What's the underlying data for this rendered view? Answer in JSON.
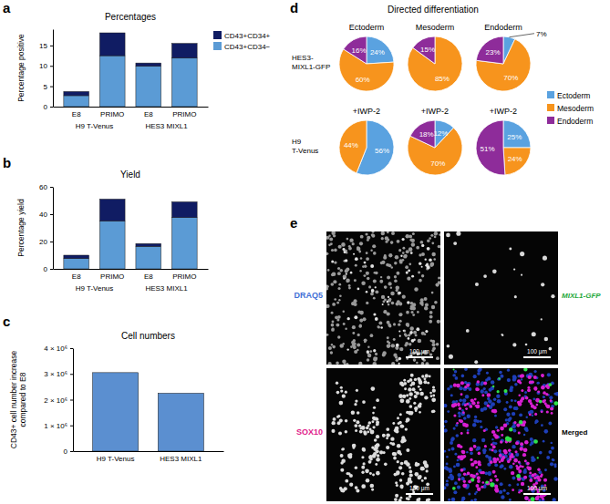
{
  "chart_data": [
    {
      "type": "bar",
      "title": "Percentages",
      "y_label": "Percentage positive",
      "categories": [
        "E8",
        "PRIMO",
        "E8",
        "PRIMO"
      ],
      "group_labels": [
        "H9 T-Venus",
        "HES3 MIXL1"
      ],
      "stacked": true,
      "legend": "upper right",
      "ylim": [
        0,
        19
      ],
      "yticks": [
        0,
        5,
        10,
        15
      ],
      "series": [
        {
          "name": "CD43+CD34−",
          "color": "#5b9bd5",
          "values": [
            2.7,
            12.5,
            9.9,
            11.9
          ]
        },
        {
          "name": "CD43+CD34+",
          "color": "#101c63",
          "values": [
            1.0,
            5.6,
            0.8,
            3.6
          ]
        }
      ]
    },
    {
      "type": "bar",
      "title": "Yield",
      "y_label": "Percentage yield",
      "categories": [
        "E8",
        "PRIMO",
        "E8",
        "PRIMO"
      ],
      "group_labels": [
        "H9 T-Venus",
        "HES3 MIXL1"
      ],
      "stacked": true,
      "ylim": [
        0,
        60
      ],
      "yticks": [
        0,
        20,
        40,
        60
      ],
      "series": [
        {
          "color": "#5b9bd5",
          "values": [
            7.5,
            35,
            16.5,
            37.5
          ]
        },
        {
          "color": "#101c63",
          "values": [
            2.5,
            16,
            2,
            11.5
          ]
        }
      ]
    },
    {
      "type": "bar",
      "title": "Cell numbers",
      "y_label": [
        "CD43+ cell number increase",
        "compared to E8"
      ],
      "categories": [
        "H9 T-Venus",
        "HES3 MIXL1"
      ],
      "values": [
        3050000,
        2250000
      ],
      "color": "#5b8fd0",
      "ylim": [
        0,
        4000000
      ],
      "yticks": [
        0,
        {
          "value": 1000000,
          "label": "1 × 10⁶"
        },
        {
          "value": 2000000,
          "label": "2 × 10⁶"
        },
        {
          "value": 3000000,
          "label": "3 × 10⁶"
        },
        {
          "value": 4000000,
          "label": "4 × 10⁶"
        }
      ]
    },
    {
      "type": "pie",
      "title": "Ectoderm",
      "categories": [
        "Ectoderm",
        "Mesoderm",
        "Endoderm"
      ],
      "values": [
        24,
        60,
        16
      ],
      "value_labels": [
        "24%",
        "60%",
        "16%"
      ],
      "colors": [
        "#5aa2e0",
        "#f7941d",
        "#8e2c9a"
      ],
      "data_labels": true,
      "legend": "right"
    },
    {
      "type": "pie",
      "title": "Mesoderm",
      "categories": [
        "Mesoderm",
        "Endoderm"
      ],
      "values": [
        85,
        15
      ],
      "value_labels": [
        "85%",
        "15%"
      ],
      "colors": [
        "#f7941d",
        "#8e2c9a"
      ],
      "data_labels": true
    },
    {
      "type": "pie",
      "title": "Endoderm",
      "categories": [
        "Ectoderm",
        "Mesoderm",
        "Endoderm"
      ],
      "values": [
        7,
        70,
        23
      ],
      "value_labels": [
        "7%",
        "70%",
        "23%"
      ],
      "colors": [
        "#5aa2e0",
        "#f7941d",
        "#8e2c9a"
      ],
      "data_labels": true
    },
    {
      "type": "pie",
      "title": "+IWP-2",
      "categories": [
        "Ectoderm",
        "Mesoderm"
      ],
      "values": [
        56,
        44
      ],
      "value_labels": [
        "56%",
        "44%"
      ],
      "colors": [
        "#5aa2e0",
        "#f7941d"
      ],
      "data_labels": true
    },
    {
      "type": "pie",
      "title": "+IWP-2",
      "categories": [
        "Ectoderm",
        "Mesoderm",
        "Endoderm"
      ],
      "values": [
        12,
        70,
        18
      ],
      "value_labels": [
        "12%",
        "70%",
        "18%"
      ],
      "colors": [
        "#5aa2e0",
        "#f7941d",
        "#8e2c9a"
      ],
      "data_labels": true
    },
    {
      "type": "pie",
      "title": "+IWP-2",
      "categories": [
        "Ectoderm",
        "Mesoderm",
        "Endoderm"
      ],
      "values": [
        25,
        24,
        51
      ],
      "value_labels": [
        "25%",
        "24%",
        "51%"
      ],
      "colors": [
        "#5aa2e0",
        "#f7941d",
        "#8e2c9a"
      ],
      "data_labels": true
    }
  ],
  "figure": {
    "panel_labels": [
      "a",
      "b",
      "c",
      "d",
      "e"
    ],
    "panel_d": {
      "title": "Directed differentiation",
      "row_labels": [
        [
          "HES3-",
          "MIXL1-GFP"
        ],
        [
          "H9",
          "T-Venus"
        ]
      ]
    },
    "panel_e": {
      "images": [
        {
          "channel": "DRAQ5",
          "color": "#3f6fd6",
          "scale_bar": "100 μm"
        },
        {
          "channel": "MIXL1-GFP",
          "color": "#22a83a",
          "scale_bar": "100 μm"
        },
        {
          "channel": "SOX10",
          "color": "#e0208a",
          "scale_bar": "100 μm"
        },
        {
          "channel": "Merged",
          "color": "#000000",
          "scale_bar": "100 μm"
        }
      ]
    }
  }
}
